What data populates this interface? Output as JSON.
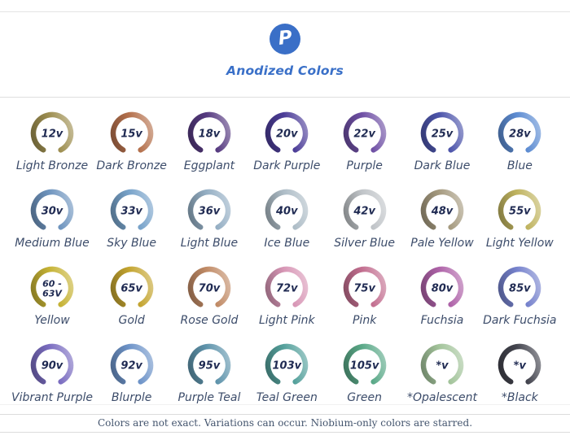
{
  "header": {
    "title": "Anodized Colors",
    "logo_letter": "P",
    "brand_color": "#3a6fc7",
    "title_color": "#3a70c8"
  },
  "footer": {
    "disclaimer": "Colors are not exact. Variations can occur. Niobium-only colors are starred."
  },
  "colors_chart": {
    "columns": 7,
    "items": [
      {
        "volts": "12v",
        "name": "Light Bronze",
        "color": "#9e8f51"
      },
      {
        "volts": "15v",
        "name": "Dark Bronze",
        "color": "#b5714d"
      },
      {
        "volts": "18v",
        "name": "Eggplant",
        "color": "#563a80"
      },
      {
        "volts": "20v",
        "name": "Dark Purple",
        "color": "#4c3d98"
      },
      {
        "volts": "22v",
        "name": "Purple",
        "color": "#6f50a5"
      },
      {
        "volts": "25v",
        "name": "Dark Blue",
        "color": "#4d55ab"
      },
      {
        "volts": "28v",
        "name": "Blue",
        "color": "#5d8cd2"
      },
      {
        "volts": "30v",
        "name": "Medium Blue",
        "color": "#6f95bf"
      },
      {
        "volts": "33v",
        "name": "Sky Blue",
        "color": "#78a3ca"
      },
      {
        "volts": "36v",
        "name": "Light Blue",
        "color": "#95afc4"
      },
      {
        "volts": "40v",
        "name": "Ice Blue",
        "color": "#aebdc7"
      },
      {
        "volts": "42v",
        "name": "Silver Blue",
        "color": "#c0c4c8"
      },
      {
        "volts": "48v",
        "name": "Pale Yellow",
        "color": "#a69b80"
      },
      {
        "volts": "55v",
        "name": "Light Yellow",
        "color": "#c0b460"
      },
      {
        "volts": "60 -\n63V",
        "name": "Yellow",
        "color": "#c6b335"
      },
      {
        "volts": "65v",
        "name": "Gold",
        "color": "#c4a530"
      },
      {
        "volts": "70v",
        "name": "Rose Gold",
        "color": "#c18b66"
      },
      {
        "volts": "72v",
        "name": "Light Pink",
        "color": "#d897b6"
      },
      {
        "volts": "75v",
        "name": "Pink",
        "color": "#c36f90"
      },
      {
        "volts": "80v",
        "name": "Fuchsia",
        "color": "#af63a9"
      },
      {
        "volts": "85v",
        "name": "Dark Fuchsia",
        "color": "#7682cd"
      },
      {
        "volts": "90v",
        "name": "Vibrant Purple",
        "color": "#7b6dc1"
      },
      {
        "volts": "92v",
        "name": "Blurple",
        "color": "#6e94c9"
      },
      {
        "volts": "95v",
        "name": "Purple Teal",
        "color": "#5f94ac"
      },
      {
        "volts": "103v",
        "name": "Teal Green",
        "color": "#55a19c"
      },
      {
        "volts": "105v",
        "name": "Green",
        "color": "#5aa988"
      },
      {
        "volts": "*v",
        "name": "*Opalescent",
        "color": "#a4c59c"
      },
      {
        "volts": "*v",
        "name": "*Black",
        "color": "#43444e"
      }
    ]
  }
}
